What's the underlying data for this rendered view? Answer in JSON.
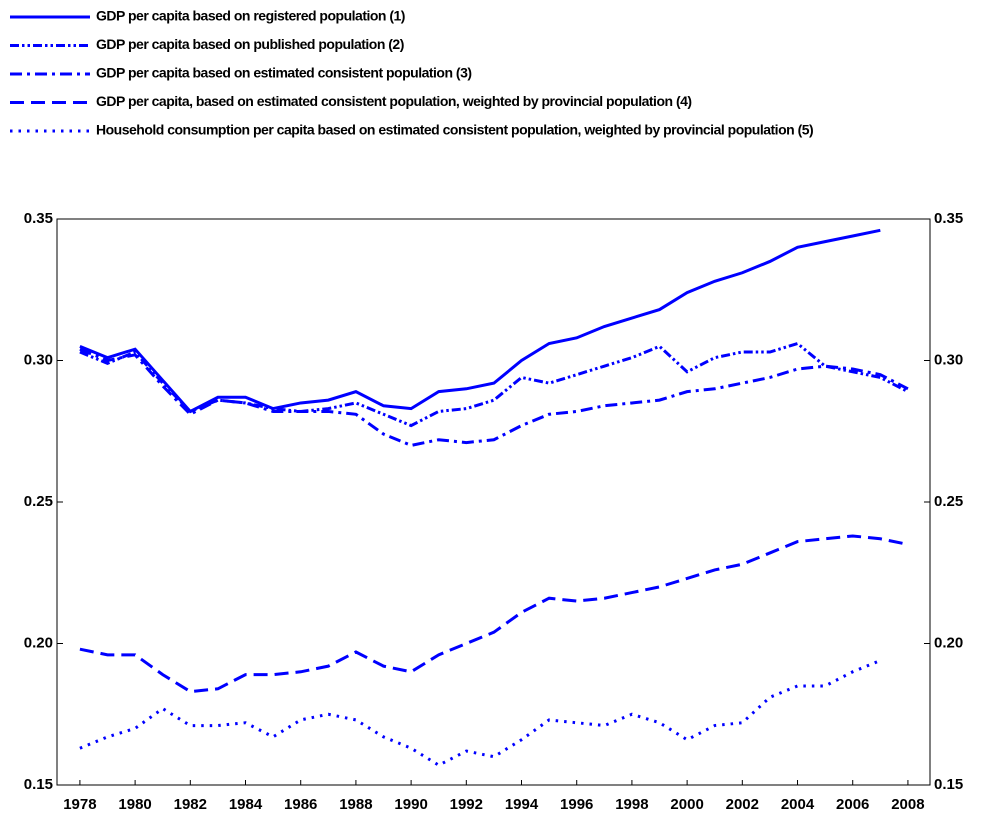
{
  "chart_data": {
    "type": "line",
    "x": [
      1978,
      1979,
      1980,
      1981,
      1982,
      1983,
      1984,
      1985,
      1986,
      1987,
      1988,
      1989,
      1990,
      1991,
      1992,
      1993,
      1994,
      1995,
      1996,
      1997,
      1998,
      1999,
      2000,
      2001,
      2002,
      2003,
      2004,
      2005,
      2006,
      2007,
      2008
    ],
    "xlim": [
      1977.17,
      2008.8
    ],
    "xticks": [
      1978,
      1980,
      1982,
      1984,
      1986,
      1988,
      1990,
      1992,
      1994,
      1996,
      1998,
      2000,
      2002,
      2004,
      2006,
      2008
    ],
    "ylim": [
      0.15,
      0.35
    ],
    "yticks": [
      0.15,
      {
        "value": 0.2,
        "label": "0.20"
      },
      0.25,
      {
        "value": 0.3,
        "label": "0.30"
      },
      0.35
    ],
    "y2lim": [
      0.15,
      0.35
    ],
    "y2ticks": [
      0.15,
      {
        "value": 0.2,
        "label": "0.20"
      },
      0.25,
      {
        "value": 0.3,
        "label": "0.30"
      },
      0.35
    ],
    "legend": "top-left",
    "series": [
      {
        "name": "GDP per capita based on registered population (1)",
        "color": "#0000ff",
        "style": "solid",
        "values": [
          0.305,
          0.301,
          0.304,
          0.293,
          0.282,
          0.287,
          0.287,
          0.283,
          0.285,
          0.286,
          0.289,
          0.284,
          0.283,
          0.289,
          0.29,
          0.292,
          0.3,
          0.306,
          0.308,
          0.312,
          0.315,
          0.318,
          0.324,
          0.328,
          0.331,
          0.335,
          0.34,
          0.342,
          0.344,
          0.346,
          null
        ]
      },
      {
        "name": "GDP per capita based on published population (2)",
        "color": "#0000ff",
        "style": "dash-dot-dot",
        "values": [
          0.303,
          0.299,
          0.303,
          0.292,
          0.282,
          0.286,
          0.285,
          0.283,
          0.282,
          0.283,
          0.285,
          0.281,
          0.277,
          0.282,
          0.283,
          0.286,
          0.294,
          0.292,
          0.295,
          0.298,
          0.301,
          0.305,
          0.296,
          0.301,
          0.303,
          0.303,
          0.306,
          0.298,
          0.296,
          0.294,
          0.289
        ]
      },
      {
        "name": "GDP per capita based on estimated consistent population (3)",
        "color": "#0000ff",
        "style": "dash-dot",
        "values": [
          0.304,
          0.3,
          0.302,
          0.291,
          0.281,
          0.286,
          0.285,
          0.282,
          0.282,
          0.282,
          0.281,
          0.274,
          0.27,
          0.272,
          0.271,
          0.272,
          0.277,
          0.281,
          0.282,
          0.284,
          0.285,
          0.286,
          0.289,
          0.29,
          0.292,
          0.294,
          0.297,
          0.298,
          0.297,
          0.295,
          0.29
        ]
      },
      {
        "name": "GDP per capita, based on estimated consistent population, weighted by provincial population (4)",
        "color": "#0000ff",
        "style": "dashed",
        "values": [
          0.198,
          0.196,
          0.196,
          0.189,
          0.183,
          0.184,
          0.189,
          0.189,
          0.19,
          0.192,
          0.197,
          0.192,
          0.19,
          0.196,
          0.2,
          0.204,
          0.211,
          0.216,
          0.215,
          0.216,
          0.218,
          0.22,
          0.223,
          0.226,
          0.228,
          0.232,
          0.236,
          0.237,
          0.238,
          0.237,
          0.235
        ]
      },
      {
        "name": "Household consumption per capita based on estimated consistent population, weighted by provincial population (5)",
        "color": "#0000ff",
        "style": "dotted",
        "values": [
          0.163,
          0.167,
          0.17,
          0.177,
          0.171,
          0.171,
          0.172,
          0.167,
          0.173,
          0.175,
          0.173,
          0.167,
          0.163,
          0.157,
          0.162,
          0.16,
          0.166,
          0.173,
          0.172,
          0.171,
          0.175,
          0.172,
          0.166,
          0.171,
          0.172,
          0.181,
          0.185,
          0.185,
          0.19,
          0.194,
          null
        ]
      }
    ]
  }
}
